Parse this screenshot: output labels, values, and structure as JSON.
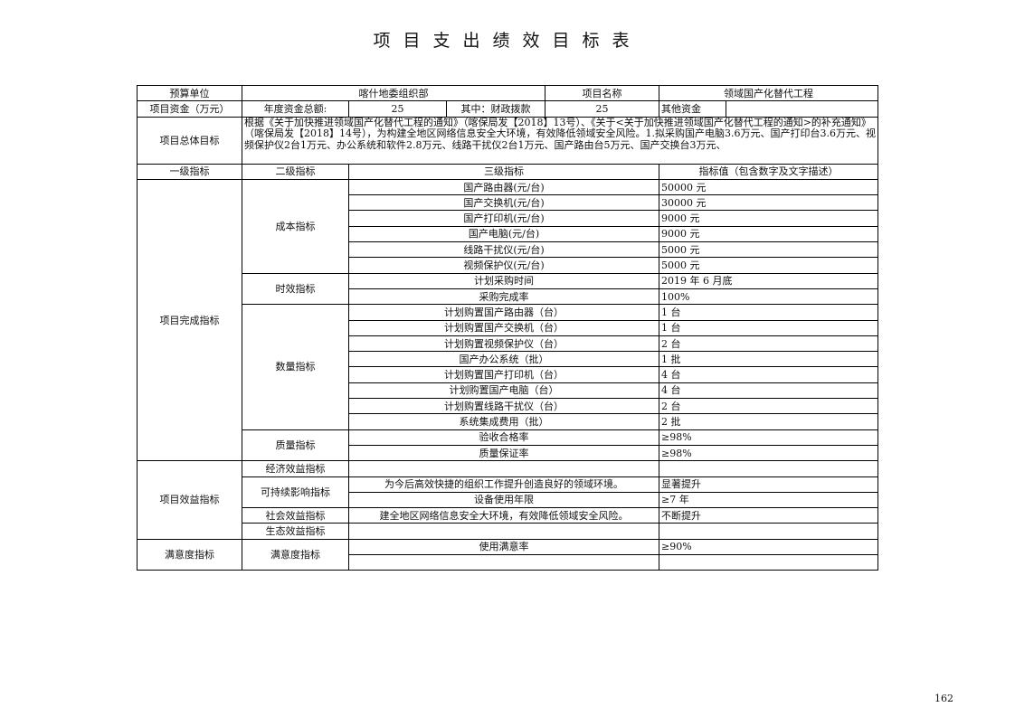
{
  "title": "项目支出绩效目标表",
  "page_number": "162",
  "header": {
    "budget_unit_label": "预算单位",
    "budget_unit": "喀什地委组织部",
    "project_name_label": "项目名称",
    "project_name": "领域国产化替代工程",
    "funds_label": "项目资金（万元）",
    "annual_total_label": "年度资金总额:",
    "annual_total": "25",
    "fiscal_label": "其中：财政拨款",
    "fiscal": "25",
    "other_label": "其他资金",
    "other": "",
    "goal_label": "项目总体目标",
    "goal": "根据《关于加快推进领域国产化替代工程的通知》（喀保局发【2018】13号）、《关于<关于加快推进领域国产化替代工程的通知>的补充通知》（喀保局发【2018】14号），为构建全地区网络信息安全大环境，有效降低领域安全风险。1.拟采购国产电脑3.6万元、国产打印台3.6万元、视频保护仪2台1万元、办公系统和软件2.8万元、线路干扰仪2台1万元、国产路由台5万元、国产交换台3万元、"
  },
  "columns": [
    "一级指标",
    "二级指标",
    "三级指标",
    "指标值（包含数字及文字描述）"
  ],
  "groups": [
    {
      "l1": "项目完成指标",
      "subs": [
        {
          "l2": "成本指标",
          "rows": [
            [
              "国产路由器(元/台)",
              "50000 元"
            ],
            [
              "国产交换机(元/台)",
              "30000 元"
            ],
            [
              "国产打印机(元/台)",
              "9000 元"
            ],
            [
              "国产电脑(元/台)",
              "9000 元"
            ],
            [
              "线路干扰仪(元/台)",
              "5000 元"
            ],
            [
              "视频保护仪(元/台)",
              "5000 元"
            ]
          ]
        },
        {
          "l2": "时效指标",
          "rows": [
            [
              "计划采购时间",
              "2019 年 6 月底"
            ],
            [
              "采购完成率",
              "100%"
            ]
          ]
        },
        {
          "l2": "数量指标",
          "rows": [
            [
              "计划购置国产路由器（台）",
              "1 台"
            ],
            [
              "计划购置国产交换机（台）",
              "1 台"
            ],
            [
              "计划购置视频保护仪（台）",
              "2 台"
            ],
            [
              "国产办公系统（批）",
              "1 批"
            ],
            [
              "计划购置国产打印机（台）",
              "4 台"
            ],
            [
              "计划购置国产电脑（台）",
              "4 台"
            ],
            [
              "计划购置线路干扰仪（台）",
              "2 台"
            ],
            [
              "系统集成费用（批）",
              "2 批"
            ]
          ]
        },
        {
          "l2": "质量指标",
          "rows": [
            [
              "验收合格率",
              "≥98%"
            ],
            [
              "质量保证率",
              "≥98%"
            ]
          ]
        }
      ]
    },
    {
      "l1": "项目效益指标",
      "subs": [
        {
          "l2": "经济效益指标",
          "rows": [
            [
              "",
              ""
            ]
          ]
        },
        {
          "l2": "可持续影响指标",
          "rows": [
            [
              "为今后高效快捷的组织工作提升创造良好的领域环境。",
              "显著提升"
            ],
            [
              "设备使用年限",
              "≥7 年"
            ]
          ]
        },
        {
          "l2": "社会效益指标",
          "rows": [
            [
              "建全地区网络信息安全大环境，有效降低领域安全风险。",
              "不断提升"
            ]
          ]
        },
        {
          "l2": "生态效益指标",
          "rows": [
            [
              "",
              ""
            ]
          ]
        }
      ]
    },
    {
      "l1": "满意度指标",
      "subs": [
        {
          "l2": "满意度指标",
          "rows": [
            [
              "使用满意率",
              "≥90%"
            ],
            [
              "",
              ""
            ]
          ]
        }
      ]
    }
  ]
}
